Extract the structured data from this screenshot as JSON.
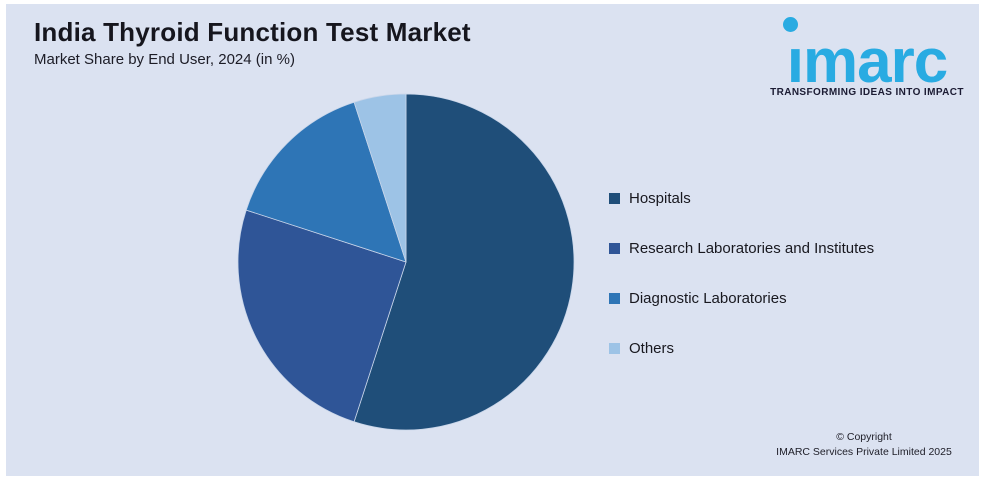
{
  "header": {
    "title": "India Thyroid Function Test Market",
    "subtitle": "Market Share by End User, 2024 (in %)"
  },
  "logo": {
    "brand": "imarc",
    "brand_dotless": "ımarc",
    "tagline": "TRANSFORMING IDEAS INTO IMPACT",
    "brand_color": "#29ABE2"
  },
  "chart_data": {
    "type": "pie",
    "title": "India Thyroid Function Test Market",
    "subtitle": "Market Share by End User, 2024 (in %)",
    "unit": "%",
    "direction": "clockwise",
    "start_angle": "12 o'clock",
    "legend_position": "right",
    "segments": [
      {
        "label": "Hospitals",
        "value": 55,
        "color": "#1F4E79"
      },
      {
        "label": "Research Laboratories and Institutes",
        "value": 25,
        "color": "#2F5597"
      },
      {
        "label": "Diagnostic Laboratories",
        "value": 15,
        "color": "#2E75B6"
      },
      {
        "label": "Others",
        "value": 5,
        "color": "#9DC3E6"
      }
    ]
  },
  "footer": {
    "copyright_line1": "© Copyright",
    "copyright_line2": "IMARC Services Private Limited 2025"
  },
  "colors": {
    "frame": "#FFFFFF",
    "panel_background": "#DBE2F1",
    "text": "#16161E",
    "slice_separator": "#C9D6EA"
  }
}
